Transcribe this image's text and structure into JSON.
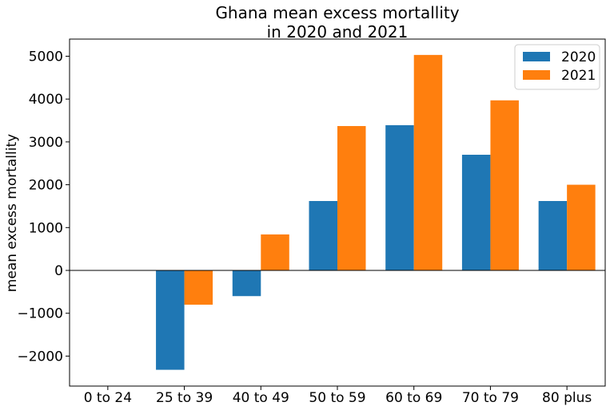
{
  "chart_data": {
    "type": "bar",
    "title": [
      "Ghana mean excess mortallity",
      "in 2020 and 2021"
    ],
    "xlabel": "",
    "ylabel": "mean excess mortallity",
    "categories": [
      "0 to 24",
      "25 to 39",
      "40 to 49",
      "50 to 59",
      "60 to 69",
      "70 to 79",
      "80 plus"
    ],
    "series": [
      {
        "name": "2020",
        "color": "#1f77b4",
        "values": [
          0,
          -2320,
          -600,
          1620,
          3390,
          2700,
          1620
        ]
      },
      {
        "name": "2021",
        "color": "#ff7f0e",
        "values": [
          0,
          -800,
          840,
          3370,
          5030,
          3970,
          2000
        ]
      }
    ],
    "ylim": [
      -2700,
      5400
    ],
    "yticks": [
      -2000,
      -1000,
      0,
      1000,
      2000,
      3000,
      4000,
      5000
    ],
    "ytick_labels": [
      "−2000",
      "−1000",
      "0",
      "1000",
      "2000",
      "3000",
      "4000",
      "5000"
    ],
    "zero_line": true,
    "grid": false,
    "legend_position": "top-right"
  }
}
